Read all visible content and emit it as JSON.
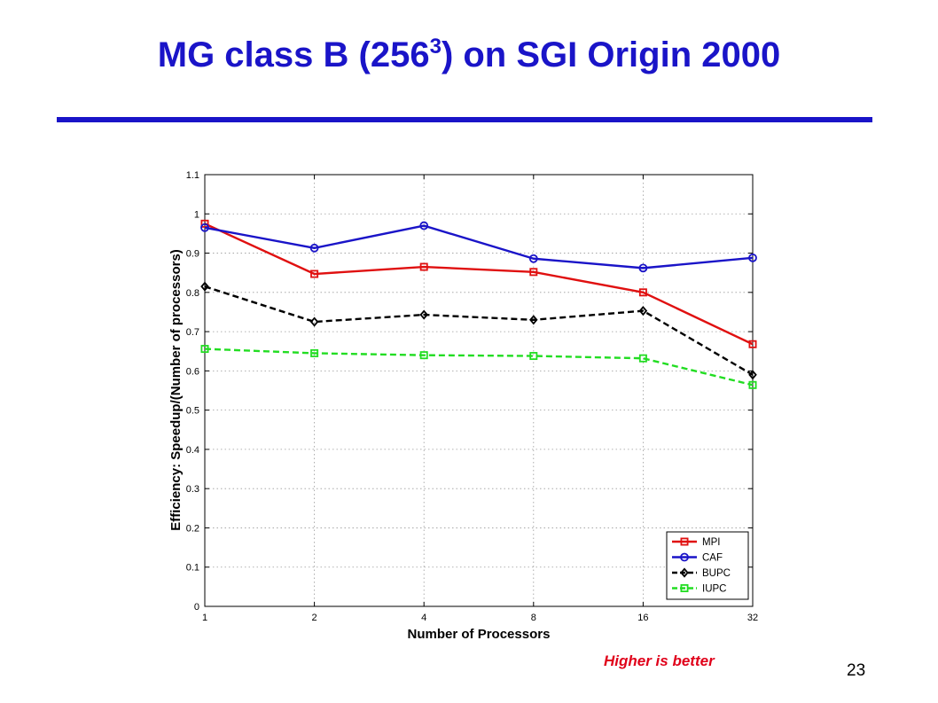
{
  "slide": {
    "title_main": "MG class B (256",
    "title_sup": "3",
    "title_end": ") on SGI Origin 2000",
    "note": "Higher is better",
    "page_number": "23",
    "accent_color": "#1a14c8",
    "note_color": "#e0001a"
  },
  "chart_data": {
    "type": "line",
    "title": "",
    "xlabel": "Number of Processors",
    "ylabel": "Efficiency: Speedup/(Number of processors)",
    "x_scale": "log2",
    "categories": [
      "1",
      "2",
      "4",
      "8",
      "16",
      "32"
    ],
    "x": [
      1,
      2,
      4,
      8,
      16,
      32
    ],
    "ylim": [
      0,
      1.1
    ],
    "yticks": [
      "0",
      "0.1",
      "0.2",
      "0.3",
      "0.4",
      "0.5",
      "0.6",
      "0.7",
      "0.8",
      "0.9",
      "1",
      "1.1"
    ],
    "grid": true,
    "legend_position": "bottom-right",
    "series": [
      {
        "name": "MPI",
        "color": "#e01010",
        "dash": "solid",
        "marker": "square",
        "values": [
          0.975,
          0.847,
          0.865,
          0.852,
          0.8,
          0.668
        ]
      },
      {
        "name": "CAF",
        "color": "#1a14c8",
        "dash": "solid",
        "marker": "circle",
        "values": [
          0.965,
          0.913,
          0.97,
          0.886,
          0.862,
          0.888
        ]
      },
      {
        "name": "BUPC",
        "color": "#000000",
        "dash": "dashed",
        "marker": "diamond",
        "values": [
          0.815,
          0.725,
          0.743,
          0.73,
          0.753,
          0.59
        ]
      },
      {
        "name": "IUPC",
        "color": "#22dd22",
        "dash": "dashed",
        "marker": "square",
        "values": [
          0.656,
          0.645,
          0.64,
          0.638,
          0.632,
          0.564
        ]
      }
    ]
  }
}
